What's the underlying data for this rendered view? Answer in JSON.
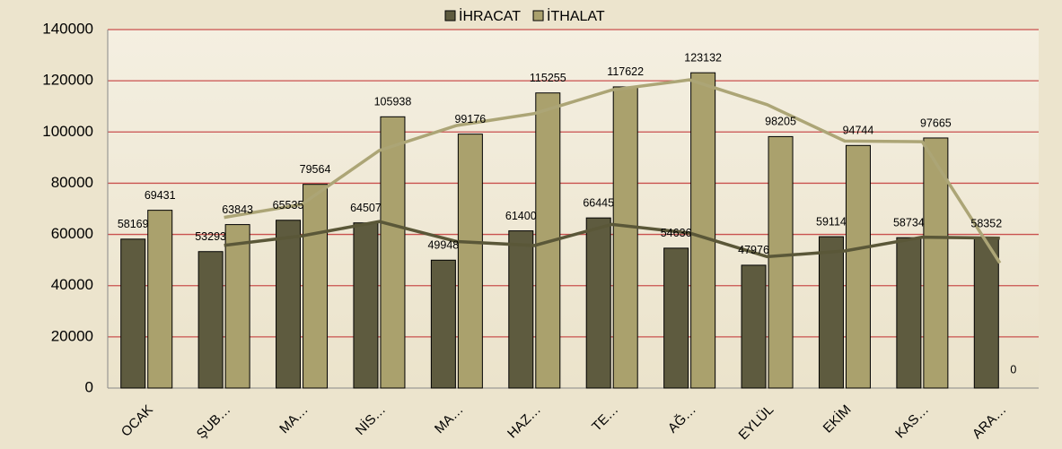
{
  "chart_data": {
    "type": "bar",
    "categories": [
      "OCAK",
      "ŞUB…",
      "MA…",
      "NİS…",
      "MA…",
      "HAZ…",
      "TE…",
      "AĞ…",
      "EYLÜL",
      "EKİM",
      "KAS…",
      "ARA…"
    ],
    "series": [
      {
        "name": "İHRACAT",
        "color": "#5e5b3f",
        "values": [
          58169,
          53293,
          65535,
          64507,
          49948,
          61400,
          66445,
          54636,
          47976,
          59114,
          58734,
          58352
        ]
      },
      {
        "name": "İTHALAT",
        "color": "#aaa16d",
        "values": [
          69431,
          63843,
          79564,
          105938,
          99176,
          115255,
          117622,
          123132,
          98205,
          94744,
          97665,
          0
        ]
      }
    ],
    "trendline": {
      "type": "moving_average",
      "period": 2
    },
    "ylim": [
      0,
      140000
    ],
    "yticks": [
      0,
      20000,
      40000,
      60000,
      80000,
      100000,
      120000,
      140000
    ],
    "grid": true,
    "legend": "top"
  }
}
